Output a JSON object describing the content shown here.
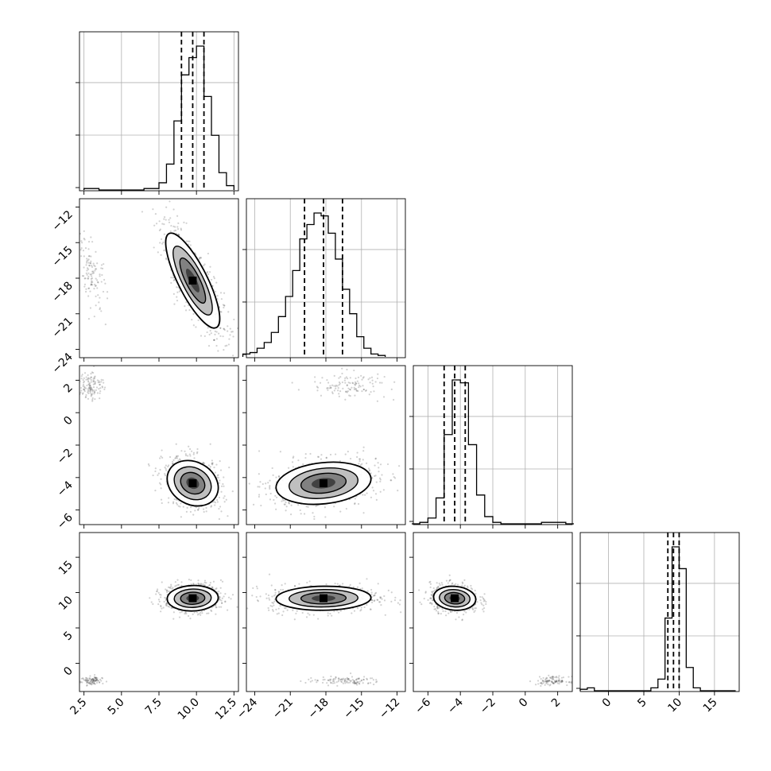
{
  "chart_data": {
    "type": "corner",
    "parameters": 4,
    "grid": true,
    "colors": {
      "axes": "#000000",
      "grid": "#b0b0b0",
      "points": "#000000",
      "fill_dark": "#000000",
      "fill_light": "#f0f0f0"
    },
    "axes_ranges": [
      [
        2.2,
        12.8
      ],
      [
        -24.7,
        -11.3
      ],
      [
        -6.9,
        2.9
      ],
      [
        -4,
        18.5
      ]
    ],
    "tick_values": [
      [
        2.5,
        5.0,
        7.5,
        10.0,
        12.5
      ],
      [
        -24,
        -21,
        -18,
        -15,
        -12
      ],
      [
        -6,
        -4,
        -2,
        0,
        2
      ],
      [
        0,
        5,
        10,
        15
      ]
    ],
    "tick_labels": [
      [
        "2.5",
        "5.0",
        "7.5",
        "10.0",
        "12.5"
      ],
      [
        "−24",
        "−21",
        "−18",
        "−15",
        "−12"
      ],
      [
        "−6",
        "−4",
        "−2",
        "0",
        "2"
      ],
      [
        "0",
        "5",
        "10",
        "15"
      ]
    ],
    "quantiles": [
      [
        9.0,
        9.75,
        10.5
      ],
      [
        -19.8,
        -18.2,
        -16.6
      ],
      [
        -5.0,
        -4.35,
        -3.7
      ],
      [
        8.4,
        9.2,
        10.0
      ]
    ],
    "histograms": [
      {
        "edges": [
          2.5,
          3.0,
          3.5,
          4.0,
          4.5,
          5.0,
          5.5,
          6.0,
          6.5,
          7.0,
          7.5,
          8.0,
          8.5,
          9.0,
          9.5,
          10.0,
          10.5,
          11.0,
          11.5,
          12.0,
          12.5
        ],
        "counts": [
          0.01,
          0.01,
          0,
          0,
          0,
          0,
          0,
          0,
          0.01,
          0.01,
          0.05,
          0.18,
          0.48,
          0.8,
          0.92,
          1.0,
          0.65,
          0.38,
          0.12,
          0.03
        ]
      },
      {
        "edges": [
          -25,
          -24.4,
          -23.8,
          -23.2,
          -22.6,
          -22.0,
          -21.4,
          -20.8,
          -20.2,
          -19.6,
          -19.0,
          -18.4,
          -17.8,
          -17.2,
          -16.6,
          -16.0,
          -15.4,
          -14.8,
          -14.2,
          -13.6,
          -13.0
        ],
        "counts": [
          0.02,
          0.03,
          0.06,
          0.1,
          0.17,
          0.28,
          0.42,
          0.6,
          0.82,
          0.92,
          1.0,
          0.98,
          0.86,
          0.68,
          0.47,
          0.3,
          0.14,
          0.06,
          0.02,
          0.01
        ]
      },
      {
        "edges": [
          -7.0,
          -6.5,
          -6.0,
          -5.5,
          -5.0,
          -4.5,
          -4.0,
          -3.5,
          -3.0,
          -2.5,
          -2.0,
          -1.5,
          -1.0,
          -0.5,
          0.0,
          0.5,
          1.0,
          1.5,
          2.0,
          2.5,
          3.0
        ],
        "counts": [
          0,
          0.01,
          0.04,
          0.18,
          0.62,
          1.0,
          0.98,
          0.55,
          0.2,
          0.05,
          0.01,
          0,
          0,
          0,
          0,
          0,
          0.01,
          0.01,
          0.01,
          0
        ]
      },
      {
        "edges": [
          -4,
          -3,
          -2,
          -1,
          0,
          1,
          2,
          3,
          4,
          5,
          6,
          7,
          8,
          9,
          10,
          11,
          12,
          13,
          14,
          15,
          16,
          17,
          18
        ],
        "counts": [
          0.01,
          0.02,
          0,
          0,
          0,
          0,
          0,
          0,
          0,
          0,
          0.02,
          0.08,
          0.5,
          0.99,
          0.84,
          0.16,
          0.02,
          0,
          0,
          0,
          0,
          0
        ]
      }
    ],
    "joint": [
      {
        "x": 0,
        "y": 1,
        "mean": [
          9.75,
          -18.2
        ],
        "sd": [
          0.9,
          2.0
        ],
        "rho": -0.8,
        "outlier": {
          "center": [
            3.0,
            -17.5
          ],
          "sd": [
            0.5,
            1.6
          ],
          "rho": -0.6,
          "n": 120
        }
      },
      {
        "x": 0,
        "y": 2,
        "mean": [
          9.75,
          -4.35
        ],
        "sd": [
          0.85,
          0.7
        ],
        "rho": -0.2,
        "outlier": {
          "center": [
            3.0,
            1.7
          ],
          "sd": [
            0.4,
            0.45
          ],
          "rho": 0,
          "n": 120
        }
      },
      {
        "x": 1,
        "y": 2,
        "mean": [
          -18.2,
          -4.35
        ],
        "sd": [
          2.0,
          0.65
        ],
        "rho": 0.2,
        "outlier": {
          "center": [
            -16.0,
            1.7
          ],
          "sd": [
            1.6,
            0.4
          ],
          "rho": 0,
          "n": 120
        }
      },
      {
        "x": 0,
        "y": 3,
        "mean": [
          9.75,
          9.2
        ],
        "sd": [
          0.85,
          0.9
        ],
        "rho": 0.05,
        "outlier": {
          "center": [
            3.0,
            -2.5
          ],
          "sd": [
            0.35,
            0.35
          ],
          "rho": 0,
          "n": 90
        }
      },
      {
        "x": 1,
        "y": 3,
        "mean": [
          -18.2,
          9.2
        ],
        "sd": [
          2.0,
          0.85
        ],
        "rho": 0.05,
        "outlier": {
          "center": [
            -16.5,
            -2.5
          ],
          "sd": [
            1.6,
            0.3
          ],
          "rho": 0,
          "n": 110
        }
      },
      {
        "x": 2,
        "y": 3,
        "mean": [
          -4.35,
          9.2
        ],
        "sd": [
          0.65,
          0.85
        ],
        "rho": -0.1,
        "outlier": {
          "center": [
            1.7,
            -2.5
          ],
          "sd": [
            0.5,
            0.3
          ],
          "rho": 0,
          "n": 100
        }
      }
    ]
  }
}
